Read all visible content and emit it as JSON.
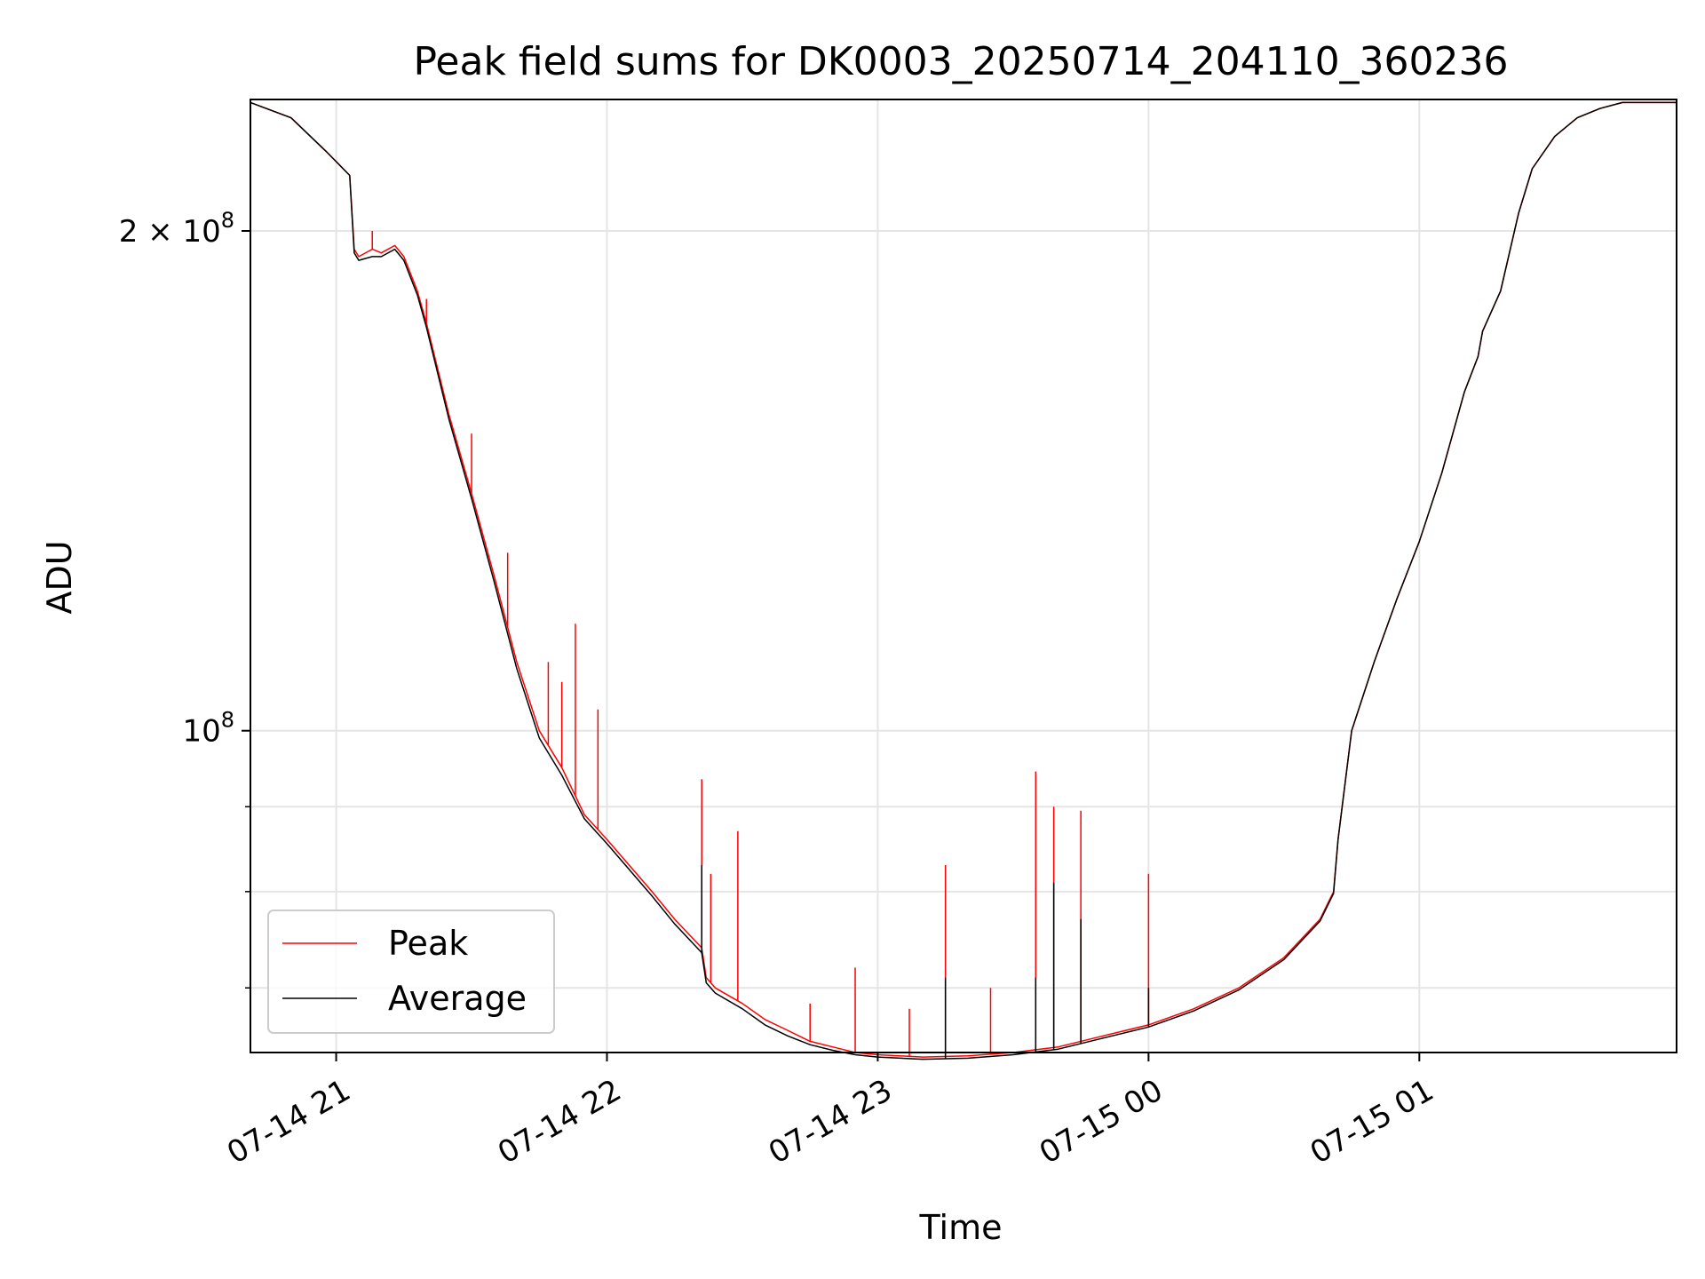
{
  "chart_data": {
    "type": "line",
    "title": "Peak field sums for DK0003_20250714_204110_360236",
    "xlabel": "Time",
    "ylabel": "ADU",
    "yscale": "log",
    "xlim": [
      "2025-07-14 20:41",
      "2025-07-15 01:57"
    ],
    "ylim": [
      64000000,
      240000000
    ],
    "x_tick_labels": [
      "07-14 21",
      "07-14 22",
      "07-14 23",
      "07-15 00",
      "07-15 01"
    ],
    "x_ticks": [
      "2025-07-14 21:00",
      "2025-07-14 22:00",
      "2025-07-14 23:00",
      "2025-07-15 00:00",
      "2025-07-15 01:00"
    ],
    "y_tick_values": [
      100000000,
      200000000
    ],
    "y_tick_labels": [
      {
        "mant": "",
        "exp": "8"
      },
      {
        "mant": "2 × ",
        "exp": "8"
      }
    ],
    "y_minor_ticks": [
      70000000,
      80000000,
      90000000
    ],
    "grid": true,
    "legend_position": "lower left",
    "colors": {
      "Peak": "#ff0000",
      "Average": "#000000"
    },
    "series": [
      {
        "name": "Peak",
        "x": [
          "2025-07-14 20:41",
          "2025-07-14 20:50",
          "2025-07-14 20:58",
          "2025-07-14 21:03",
          "2025-07-14 21:04",
          "2025-07-14 21:05",
          "2025-07-14 21:08",
          "2025-07-14 21:10",
          "2025-07-14 21:13",
          "2025-07-14 21:15",
          "2025-07-14 21:18",
          "2025-07-14 21:20",
          "2025-07-14 21:25",
          "2025-07-14 21:30",
          "2025-07-14 21:35",
          "2025-07-14 21:40",
          "2025-07-14 21:45",
          "2025-07-14 21:50",
          "2025-07-14 21:55",
          "2025-07-14 22:00",
          "2025-07-14 22:10",
          "2025-07-14 22:15",
          "2025-07-14 22:21",
          "2025-07-14 22:22",
          "2025-07-14 22:24",
          "2025-07-14 22:30",
          "2025-07-14 22:35",
          "2025-07-14 22:40",
          "2025-07-14 22:45",
          "2025-07-14 22:50",
          "2025-07-14 22:55",
          "2025-07-14 23:00",
          "2025-07-14 23:10",
          "2025-07-14 23:20",
          "2025-07-14 23:30",
          "2025-07-14 23:40",
          "2025-07-14 23:50",
          "2025-07-15 00:00",
          "2025-07-15 00:10",
          "2025-07-15 00:20",
          "2025-07-15 00:30",
          "2025-07-15 00:38",
          "2025-07-15 00:41",
          "2025-07-15 00:42",
          "2025-07-15 00:45",
          "2025-07-15 00:50",
          "2025-07-15 00:55",
          "2025-07-15 01:00",
          "2025-07-15 01:05",
          "2025-07-15 01:10",
          "2025-07-15 01:13",
          "2025-07-15 01:14",
          "2025-07-15 01:18",
          "2025-07-15 01:22",
          "2025-07-15 01:25",
          "2025-07-15 01:30",
          "2025-07-15 01:35",
          "2025-07-15 01:40",
          "2025-07-15 01:45",
          "2025-07-15 01:50",
          "2025-07-15 01:57"
        ],
        "values": [
          239000000,
          234000000,
          223000000,
          216000000,
          195000000,
          193000000,
          195000000,
          194000000,
          196000000,
          193000000,
          184000000,
          176000000,
          155000000,
          139000000,
          124000000,
          110000000,
          100000000,
          95000000,
          89000000,
          86000000,
          80000000,
          77000000,
          74000000,
          71000000,
          70000000,
          68500000,
          67000000,
          66000000,
          65000000,
          64500000,
          64000000,
          63800000,
          63600000,
          63700000,
          64000000,
          64500000,
          65500000,
          66500000,
          68000000,
          70000000,
          73000000,
          77000000,
          80000000,
          86000000,
          100000000,
          110000000,
          120000000,
          130000000,
          143000000,
          160000000,
          168000000,
          174000000,
          184000000,
          205000000,
          218000000,
          228000000,
          234000000,
          237000000,
          239000000,
          239000000,
          239000000
        ],
        "spikes": [
          {
            "x": "2025-07-14 21:08",
            "y": 200000000
          },
          {
            "x": "2025-07-14 21:20",
            "y": 182000000
          },
          {
            "x": "2025-07-14 21:30",
            "y": 151000000
          },
          {
            "x": "2025-07-14 21:38",
            "y": 128000000
          },
          {
            "x": "2025-07-14 21:47",
            "y": 110000000
          },
          {
            "x": "2025-07-14 21:50",
            "y": 107000000
          },
          {
            "x": "2025-07-14 21:53",
            "y": 116000000
          },
          {
            "x": "2025-07-14 21:58",
            "y": 103000000
          },
          {
            "x": "2025-07-14 22:21",
            "y": 93500000
          },
          {
            "x": "2025-07-14 22:23",
            "y": 82000000
          },
          {
            "x": "2025-07-14 22:29",
            "y": 87000000
          },
          {
            "x": "2025-07-14 22:45",
            "y": 68500000
          },
          {
            "x": "2025-07-14 22:55",
            "y": 72000000
          },
          {
            "x": "2025-07-14 23:07",
            "y": 68000000
          },
          {
            "x": "2025-07-14 23:15",
            "y": 83000000
          },
          {
            "x": "2025-07-14 23:25",
            "y": 70000000
          },
          {
            "x": "2025-07-14 23:35",
            "y": 94500000
          },
          {
            "x": "2025-07-14 23:39",
            "y": 90000000
          },
          {
            "x": "2025-07-14 23:45",
            "y": 89500000
          },
          {
            "x": "2025-07-15 00:00",
            "y": 82000000
          }
        ]
      },
      {
        "name": "Average",
        "x": [
          "2025-07-14 20:41",
          "2025-07-14 20:50",
          "2025-07-14 20:58",
          "2025-07-14 21:03",
          "2025-07-14 21:04",
          "2025-07-14 21:05",
          "2025-07-14 21:08",
          "2025-07-14 21:10",
          "2025-07-14 21:13",
          "2025-07-14 21:15",
          "2025-07-14 21:18",
          "2025-07-14 21:20",
          "2025-07-14 21:25",
          "2025-07-14 21:30",
          "2025-07-14 21:35",
          "2025-07-14 21:40",
          "2025-07-14 21:45",
          "2025-07-14 21:50",
          "2025-07-14 21:55",
          "2025-07-14 22:00",
          "2025-07-14 22:10",
          "2025-07-14 22:15",
          "2025-07-14 22:21",
          "2025-07-14 22:22",
          "2025-07-14 22:24",
          "2025-07-14 22:30",
          "2025-07-14 22:35",
          "2025-07-14 22:40",
          "2025-07-14 22:45",
          "2025-07-14 22:50",
          "2025-07-14 22:55",
          "2025-07-14 23:00",
          "2025-07-14 23:10",
          "2025-07-14 23:20",
          "2025-07-14 23:30",
          "2025-07-14 23:40",
          "2025-07-14 23:50",
          "2025-07-15 00:00",
          "2025-07-15 00:10",
          "2025-07-15 00:20",
          "2025-07-15 00:30",
          "2025-07-15 00:38",
          "2025-07-15 00:41",
          "2025-07-15 00:42",
          "2025-07-15 00:45",
          "2025-07-15 00:50",
          "2025-07-15 00:55",
          "2025-07-15 01:00",
          "2025-07-15 01:05",
          "2025-07-15 01:10",
          "2025-07-15 01:13",
          "2025-07-15 01:14",
          "2025-07-15 01:18",
          "2025-07-15 01:22",
          "2025-07-15 01:25",
          "2025-07-15 01:30",
          "2025-07-15 01:35",
          "2025-07-15 01:40",
          "2025-07-15 01:45",
          "2025-07-15 01:50",
          "2025-07-15 01:57"
        ],
        "values": [
          239000000,
          234000000,
          223000000,
          216000000,
          194000000,
          192000000,
          193000000,
          193000000,
          195000000,
          192000000,
          183000000,
          175000000,
          154000000,
          138000000,
          123000000,
          109000000,
          99000000,
          94000000,
          88500000,
          85500000,
          79500000,
          76500000,
          73500000,
          70500000,
          69500000,
          68000000,
          66500000,
          65500000,
          64700000,
          64200000,
          63800000,
          63600000,
          63400000,
          63500000,
          63800000,
          64300000,
          65300000,
          66300000,
          67800000,
          69800000,
          72800000,
          76800000,
          79800000,
          86000000,
          100000000,
          110000000,
          120000000,
          130000000,
          143000000,
          160000000,
          168000000,
          174000000,
          184000000,
          205000000,
          218000000,
          228000000,
          234000000,
          237000000,
          239000000,
          239000000,
          239000000
        ],
        "spikes": [
          {
            "x": "2025-07-14 22:21",
            "y": 83000000
          },
          {
            "x": "2025-07-14 23:15",
            "y": 71000000
          },
          {
            "x": "2025-07-14 23:35",
            "y": 71000000
          },
          {
            "x": "2025-07-14 23:39",
            "y": 81000000
          },
          {
            "x": "2025-07-14 23:45",
            "y": 77000000
          },
          {
            "x": "2025-07-15 00:00",
            "y": 70000000
          }
        ]
      }
    ]
  }
}
